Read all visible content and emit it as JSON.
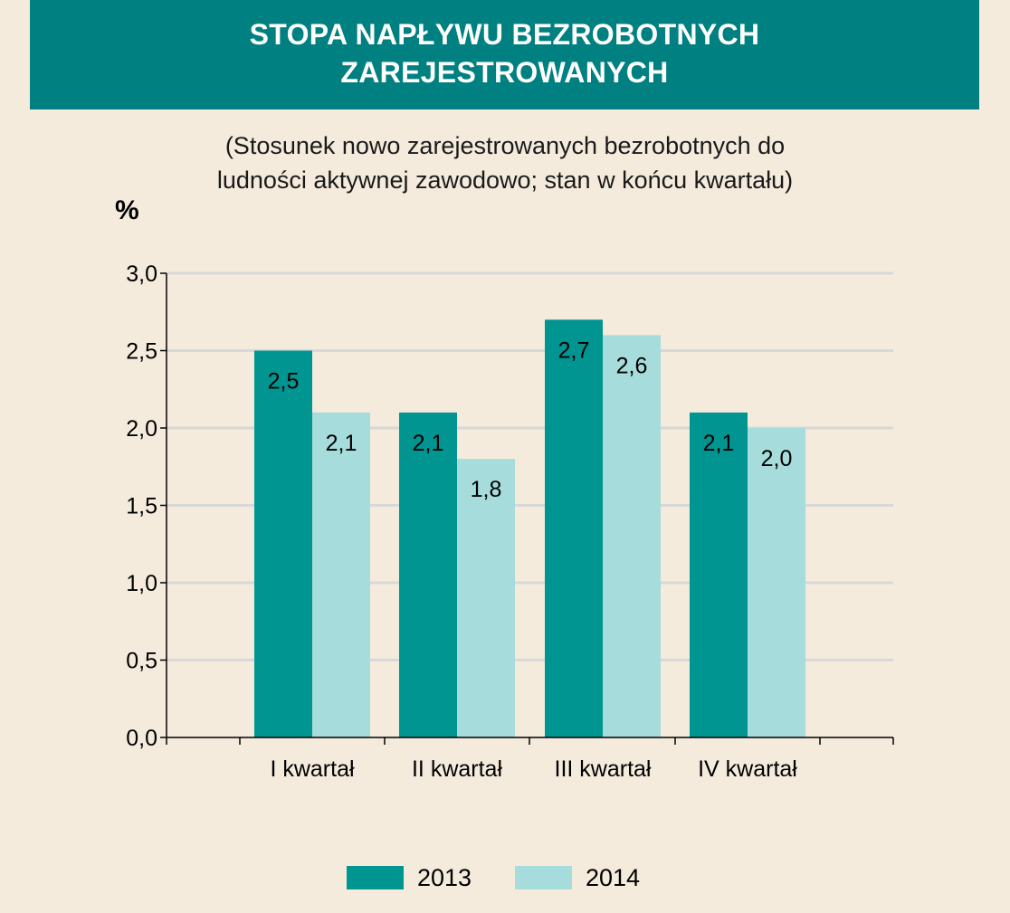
{
  "title": {
    "line1": "STOPA NAPŁYWU BEZROBOTNYCH",
    "line2": "ZAREJESTROWANYCH"
  },
  "subtitle": {
    "line1": "(Stosunek nowo zarejestrowanych bezrobotnych do",
    "line2": "ludności aktywnej zawodowo; stan w końcu kwartału)"
  },
  "colors": {
    "background": "#f5ebdd",
    "title_band": "#008080",
    "series_2013": "#009590",
    "series_2014": "#a6dcdb",
    "gridline": "#d8d8d8"
  },
  "chart_data": {
    "type": "bar",
    "ylabel": "%",
    "xlabel": "",
    "categories": [
      "I kwartał",
      "II kwartał",
      "III kwartał",
      "IV kwartał"
    ],
    "series": [
      {
        "name": "2013",
        "values": [
          2.5,
          2.1,
          2.7,
          2.1
        ],
        "labels": [
          "2,5",
          "2,1",
          "2,7",
          "2,1"
        ]
      },
      {
        "name": "2014",
        "values": [
          2.1,
          1.8,
          2.6,
          2.0
        ],
        "labels": [
          "2,1",
          "1,8",
          "2,6",
          "2,0"
        ]
      }
    ],
    "ylim": [
      0,
      3
    ],
    "yticks": [
      0,
      0.5,
      1,
      1.5,
      2,
      2.5,
      3
    ],
    "ytick_labels": [
      "0,0",
      "0,5",
      "1,0",
      "1,5",
      "2,0",
      "2,5",
      "3,0"
    ],
    "grid": true,
    "legend_position": "bottom-center"
  }
}
